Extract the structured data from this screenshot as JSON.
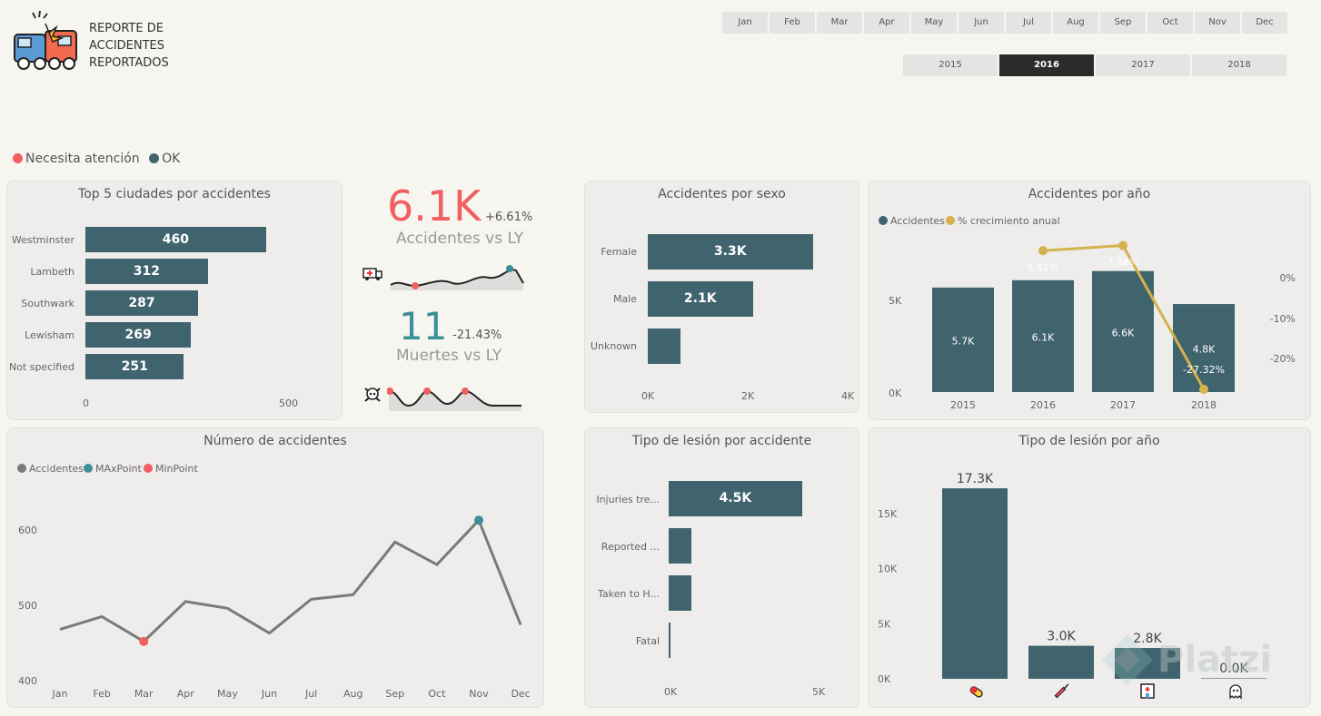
{
  "header": {
    "title_lines": [
      "REPORTE DE",
      "ACCIDENTES",
      "REPORTADOS"
    ],
    "months": [
      "Jan",
      "Feb",
      "Mar",
      "Apr",
      "May",
      "Jun",
      "Jul",
      "Aug",
      "Sep",
      "Oct",
      "Nov",
      "Dec"
    ],
    "years": [
      "2015",
      "2016",
      "2017",
      "2018"
    ],
    "selected_year": "2016"
  },
  "status_legend": {
    "attention": "Necesita atención",
    "ok": "OK",
    "attention_color": "#f06060",
    "ok_color": "#40646e"
  },
  "top5": {
    "title": "Top 5 ciudades por accidentes",
    "cities": [
      "Westminster",
      "Lambeth",
      "Southwark",
      "Lewisham",
      "Not specified"
    ],
    "values": [
      460,
      312,
      287,
      269,
      251
    ],
    "value_labels": [
      "460",
      "312",
      "287",
      "269",
      "251"
    ],
    "axis": [
      "0",
      "500"
    ]
  },
  "kpi_accidents": {
    "value": "6.1K",
    "change": "+6.61%",
    "label": "Accidentes vs LY",
    "icon": "ambulance-icon"
  },
  "kpi_deaths": {
    "value": "11",
    "change": "-21.43%",
    "label": "Muertes vs LY",
    "icon": "skull-icon"
  },
  "sexo": {
    "title": "Accidentes por sexo",
    "categories": [
      "Female",
      "Male",
      "Unknown"
    ],
    "values": [
      3300,
      2100,
      650
    ],
    "value_labels": [
      "3.3K",
      "2.1K",
      ""
    ],
    "axis": [
      "0K",
      "2K",
      "4K"
    ]
  },
  "por_anio": {
    "title": "Accidentes por año",
    "legend": [
      "Accidentes",
      "% crecimiento anual"
    ],
    "years": [
      "2015",
      "2016",
      "2017",
      "2018"
    ],
    "values": [
      5700,
      6100,
      6600,
      4800
    ],
    "value_labels": [
      "5.7K",
      "6.1K",
      "6.6K",
      "4.8K"
    ],
    "growth": [
      null,
      6.61,
      7.88,
      -27.32
    ],
    "growth_labels": [
      "",
      "6.61%",
      "7.88%",
      "-27.32%"
    ],
    "y_left": [
      "5K",
      "0K"
    ],
    "y_right": [
      "0%",
      "-10%",
      "-20%"
    ],
    "line_color": "#d4b24c"
  },
  "numero": {
    "title": "Número de accidentes",
    "legend": [
      "Accidentes",
      "MAxPoint",
      "MinPoint"
    ],
    "months": [
      "Jan",
      "Feb",
      "Mar",
      "Apr",
      "May",
      "Jun",
      "Jul",
      "Aug",
      "Sep",
      "Oct",
      "Nov",
      "Dec"
    ],
    "values": [
      468,
      485,
      452,
      505,
      496,
      463,
      508,
      514,
      584,
      554,
      613,
      474
    ],
    "y_ticks": [
      "600",
      "500",
      "400"
    ]
  },
  "tipo_lesion": {
    "title": "Tipo de lesión por accidente",
    "categories": [
      "Injuries tre...",
      "Reported ...",
      "Taken to H...",
      "Fatal"
    ],
    "values": [
      4500,
      780,
      780,
      30
    ],
    "value_labels": [
      "4.5K",
      "",
      "",
      ""
    ],
    "axis": [
      "0K",
      "5K"
    ]
  },
  "tipo_lesion_anio": {
    "title": "Tipo de lesión por año",
    "values": [
      17300,
      3000,
      2800,
      0
    ],
    "value_labels": [
      "17.3K",
      "3.0K",
      "2.8K",
      "0.0K"
    ],
    "icons": [
      "pill-icon",
      "syringe-icon",
      "hospital-icon",
      "ghost-icon"
    ],
    "y_ticks": [
      "15K",
      "10K",
      "5K",
      "0K"
    ]
  },
  "watermark": "Platzi"
}
